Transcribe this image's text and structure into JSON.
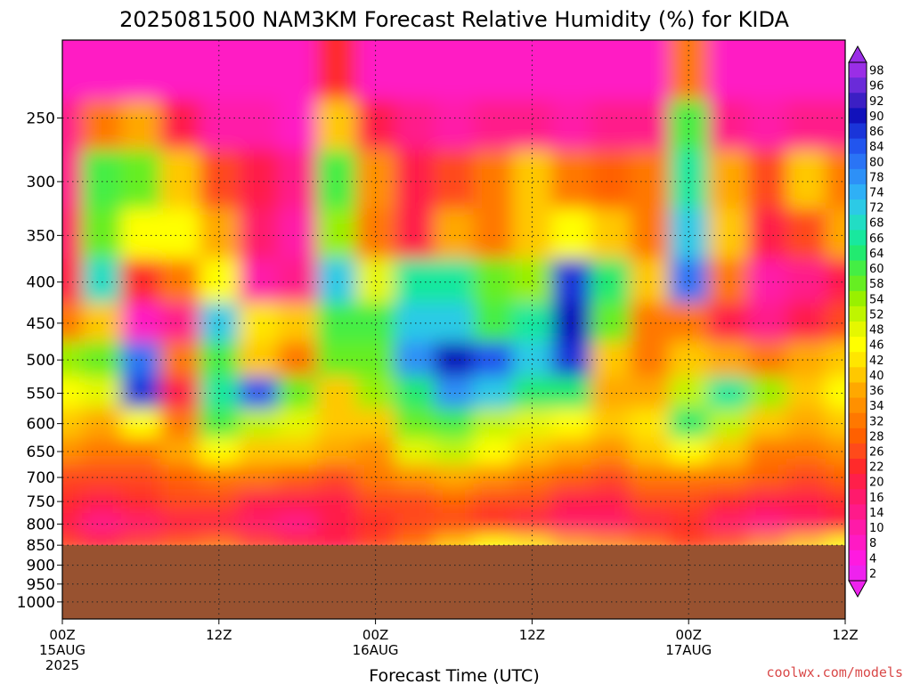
{
  "chart_data": {
    "type": "heatmap",
    "title": "2025081500 NAM3KM Forecast Relative Humidity (%) for KIDA",
    "xlabel": "Forecast Time (UTC)",
    "ylabel": "",
    "y_scale": "log",
    "y_ticks": [
      250,
      300,
      350,
      400,
      450,
      500,
      550,
      600,
      650,
      700,
      750,
      800,
      850,
      900,
      950,
      1000
    ],
    "y_range": [
      200,
      1050
    ],
    "x_range_hours": [
      0,
      60
    ],
    "x_ticks": [
      {
        "hour": 0,
        "labels": [
          "00Z",
          "15AUG",
          "2025"
        ]
      },
      {
        "hour": 12,
        "labels": [
          "12Z"
        ]
      },
      {
        "hour": 24,
        "labels": [
          "00Z",
          "16AUG"
        ]
      },
      {
        "hour": 36,
        "labels": [
          "12Z"
        ]
      },
      {
        "hour": 48,
        "labels": [
          "00Z",
          "17AUG"
        ]
      },
      {
        "hour": 60,
        "labels": [
          "12Z"
        ]
      }
    ],
    "surface_pressure": 850,
    "grid": true,
    "colorbar": {
      "labels": [
        "98",
        "96",
        "92",
        "90",
        "86",
        "84",
        "80",
        "78",
        "74",
        "72",
        "68",
        "66",
        "64",
        "60",
        "58",
        "54",
        "52",
        "48",
        "46",
        "42",
        "40",
        "36",
        "34",
        "32",
        "28",
        "26",
        "22",
        "20",
        "16",
        "14",
        "10",
        "8",
        "4",
        "2"
      ],
      "colors": [
        "#9a2ee6",
        "#6a2bd9",
        "#3b1fc4",
        "#1111bb",
        "#1a35d9",
        "#2255ee",
        "#2a74f5",
        "#2d90f7",
        "#2fb0f6",
        "#2ccae6",
        "#22ddc4",
        "#18e89e",
        "#22ea70",
        "#44ee44",
        "#66ee22",
        "#99f000",
        "#bff500",
        "#e5f700",
        "#ffff00",
        "#ffe600",
        "#ffc800",
        "#ffa800",
        "#ff9000",
        "#ff7800",
        "#ff6000",
        "#ff4a1a",
        "#ff2a2a",
        "#ff1f4a",
        "#ff1a6c",
        "#ff1a8a",
        "#ff1aa8",
        "#ff1ac4",
        "#ff1ae0",
        "#ee22ee"
      ]
    },
    "rh_field": {
      "x_hours": [
        0,
        3,
        6,
        9,
        12,
        15,
        18,
        21,
        24,
        27,
        30,
        33,
        36,
        39,
        42,
        45,
        48,
        51,
        54,
        57,
        60
      ],
      "pressure_levels": [
        225,
        250,
        300,
        350,
        400,
        450,
        500,
        550,
        600,
        650,
        700,
        750,
        800,
        850
      ],
      "values": [
        [
          8,
          8,
          8,
          8,
          8,
          8,
          8,
          22,
          8,
          8,
          8,
          8,
          8,
          8,
          8,
          8,
          30,
          8,
          8,
          8,
          8
        ],
        [
          12,
          30,
          36,
          20,
          10,
          10,
          8,
          40,
          20,
          12,
          10,
          12,
          14,
          10,
          12,
          12,
          60,
          12,
          10,
          12,
          14
        ],
        [
          14,
          60,
          58,
          40,
          26,
          20,
          14,
          60,
          34,
          20,
          26,
          30,
          38,
          32,
          28,
          30,
          66,
          36,
          24,
          40,
          30
        ],
        [
          16,
          56,
          46,
          44,
          36,
          16,
          10,
          54,
          30,
          18,
          36,
          30,
          40,
          44,
          38,
          30,
          70,
          40,
          20,
          24,
          36
        ],
        [
          20,
          68,
          22,
          30,
          46,
          10,
          12,
          70,
          48,
          66,
          66,
          56,
          54,
          86,
          64,
          40,
          80,
          30,
          10,
          14,
          18
        ],
        [
          30,
          40,
          8,
          14,
          70,
          42,
          38,
          60,
          60,
          70,
          72,
          60,
          66,
          90,
          58,
          30,
          30,
          20,
          14,
          20,
          26
        ],
        [
          54,
          56,
          80,
          30,
          60,
          40,
          30,
          56,
          58,
          78,
          88,
          84,
          72,
          86,
          40,
          32,
          38,
          36,
          30,
          36,
          40
        ],
        [
          44,
          48,
          86,
          20,
          66,
          84,
          58,
          40,
          54,
          62,
          76,
          72,
          64,
          62,
          36,
          36,
          52,
          66,
          54,
          40,
          44
        ],
        [
          38,
          36,
          44,
          30,
          60,
          50,
          48,
          38,
          40,
          58,
          60,
          50,
          48,
          44,
          40,
          42,
          62,
          50,
          40,
          36,
          40
        ],
        [
          34,
          30,
          30,
          36,
          44,
          40,
          38,
          36,
          34,
          48,
          52,
          46,
          40,
          36,
          34,
          38,
          44,
          38,
          32,
          32,
          34
        ],
        [
          26,
          24,
          26,
          28,
          32,
          30,
          28,
          26,
          30,
          34,
          36,
          34,
          30,
          28,
          26,
          30,
          32,
          30,
          28,
          26,
          28
        ],
        [
          22,
          18,
          22,
          24,
          24,
          20,
          18,
          20,
          24,
          26,
          28,
          26,
          24,
          20,
          20,
          24,
          26,
          22,
          18,
          20,
          22
        ],
        [
          20,
          14,
          16,
          18,
          20,
          16,
          14,
          18,
          22,
          24,
          24,
          22,
          20,
          16,
          16,
          20,
          22,
          16,
          14,
          16,
          18
        ],
        [
          26,
          22,
          24,
          28,
          30,
          26,
          22,
          20,
          26,
          30,
          40,
          44,
          42,
          36,
          34,
          30,
          26,
          28,
          34,
          40,
          46
        ]
      ]
    }
  },
  "watermark": "coolwx.com/models",
  "colors": {
    "ground": "#985230",
    "grid": "#222222",
    "watermark": "#d94848"
  }
}
